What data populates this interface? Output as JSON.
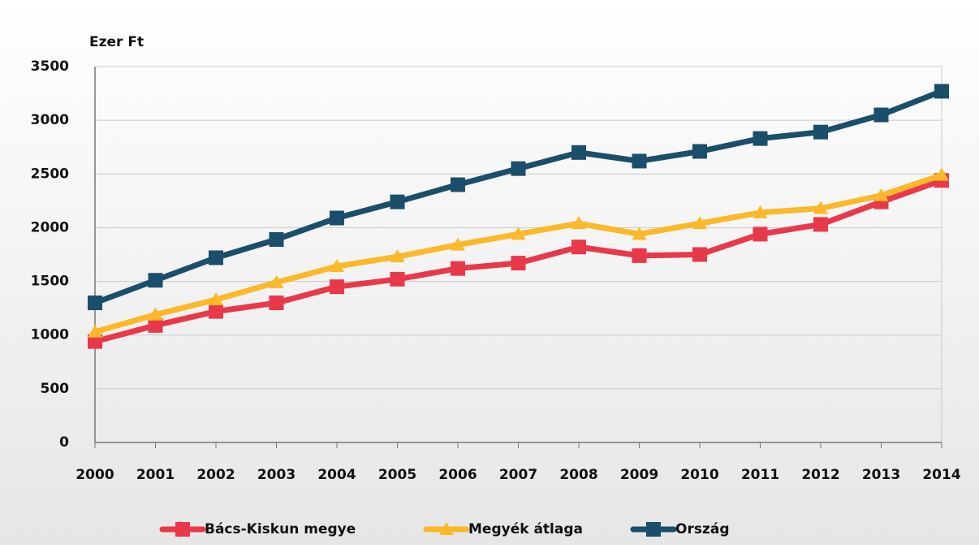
{
  "chart_data": {
    "type": "line",
    "y_label": "Ezer Ft",
    "categories": [
      "2000",
      "2001",
      "2002",
      "2003",
      "2004",
      "2005",
      "2006",
      "2007",
      "2008",
      "2009",
      "2010",
      "2011",
      "2012",
      "2013",
      "2014"
    ],
    "series": [
      {
        "name": "Bács-Kiskun megye",
        "color": "#e8394a",
        "marker": "square",
        "values": [
          940,
          1090,
          1220,
          1300,
          1450,
          1520,
          1620,
          1670,
          1820,
          1740,
          1750,
          1940,
          2030,
          2240,
          2440
        ]
      },
      {
        "name": "Megyék átlaga",
        "color": "#fbb829",
        "marker": "triangle",
        "values": [
          1030,
          1190,
          1330,
          1490,
          1640,
          1730,
          1840,
          1940,
          2040,
          1940,
          2040,
          2140,
          2180,
          2300,
          2490
        ]
      },
      {
        "name": "Ország",
        "color": "#1a4e6a",
        "marker": "square",
        "values": [
          1300,
          1510,
          1720,
          1890,
          2090,
          2240,
          2400,
          2550,
          2700,
          2620,
          2710,
          2830,
          2890,
          3050,
          3270
        ]
      }
    ],
    "ylim": [
      0,
      3500
    ],
    "yticks": [
      0,
      500,
      1000,
      1500,
      2000,
      2500,
      3000,
      3500
    ],
    "grid": true,
    "legend": "bottom"
  }
}
